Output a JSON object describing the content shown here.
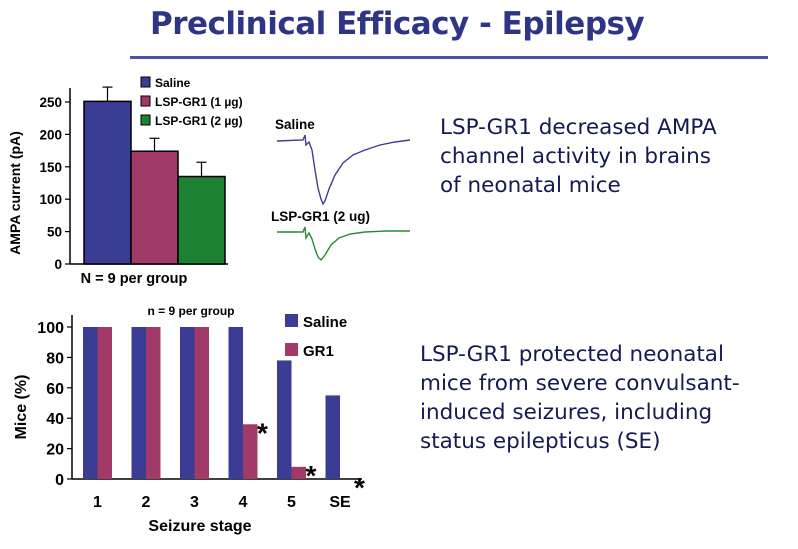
{
  "slide": {
    "title": "Preclinical Efficacy - Epilepsy",
    "bullets": [
      {
        "lines": [
          "LSP-GR1 decreased AMPA",
          "channel activity in brains",
          "of neonatal mice"
        ]
      },
      {
        "lines": [
          "LSP-GR1 protected neonatal",
          "mice from severe convulsant-",
          "induced seizures, including",
          "status epilepticus (SE)"
        ]
      }
    ]
  },
  "traces": {
    "labels": [
      "Saline",
      "LSP-GR1 (2 ug)"
    ],
    "colors": [
      "#3e3f94",
      "#2a8a35"
    ]
  },
  "chart_data": [
    {
      "type": "bar",
      "title": "",
      "xlabel": "N = 9 per group",
      "ylabel": "AMPA current (pA)",
      "ylim": [
        0,
        250
      ],
      "yticks": [
        0,
        50,
        100,
        150,
        200,
        250
      ],
      "categories": [
        "Saline",
        "LSP-GR1 (1 µg)",
        "LSP-GR1 (2 µg)"
      ],
      "values": [
        251,
        174,
        135
      ],
      "errors": [
        22,
        20,
        22
      ],
      "colors": [
        "#3b3d95",
        "#a13a68",
        "#1d8134"
      ],
      "legend": [
        "Saline",
        "LSP-GR1 (1 µg)",
        "LSP-GR1 (2 µg)"
      ],
      "legend_position": "top-right",
      "grid": false
    },
    {
      "type": "bar",
      "title": "n = 9 per group",
      "xlabel": "Seizure stage",
      "ylabel": "Mice (%)",
      "ylim": [
        0,
        100
      ],
      "yticks": [
        0,
        20,
        40,
        60,
        80,
        100
      ],
      "categories": [
        "1",
        "2",
        "3",
        "4",
        "5",
        "SE"
      ],
      "series": [
        {
          "name": "Saline",
          "color": "#3b3d95",
          "values": [
            100,
            100,
            100,
            100,
            78,
            55
          ]
        },
        {
          "name": "GR1",
          "color": "#a13a68",
          "values": [
            100,
            100,
            100,
            36,
            8,
            0
          ]
        }
      ],
      "significance": [
        "",
        "",
        "",
        "*",
        "*",
        "*"
      ],
      "legend_position": "top-right",
      "grid": false
    }
  ]
}
